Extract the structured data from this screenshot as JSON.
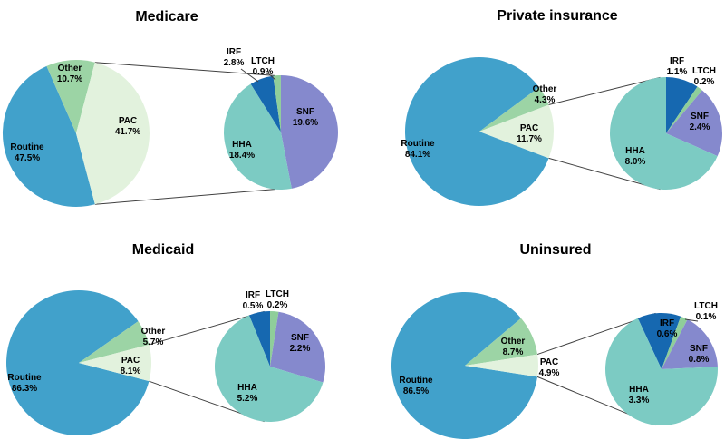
{
  "page": {
    "background": "#ffffff"
  },
  "palette": {
    "routine": "#41A1CB",
    "other": "#9CD4A5",
    "pac": "#E2F2DD",
    "irf": "#1668B0",
    "ltch": "#8FCE9A",
    "snf": "#8589CD",
    "hha": "#7CCBC3",
    "line": "#404040",
    "text": "#000000"
  },
  "chart_data": [
    {
      "type": "pie",
      "variant": "pie-of-pie",
      "title": "Medicare",
      "main": {
        "slices": [
          {
            "label": "Routine",
            "pct": 47.5
          },
          {
            "label": "Other",
            "pct": 10.7
          },
          {
            "label": "PAC",
            "pct": 41.7
          }
        ]
      },
      "detail": {
        "slices": [
          {
            "label": "IRF",
            "pct": 2.8
          },
          {
            "label": "LTCH",
            "pct": 0.9
          },
          {
            "label": "SNF",
            "pct": 19.6
          },
          {
            "label": "HHA",
            "pct": 18.4
          }
        ]
      },
      "layout_hints": {
        "routine_start_deg": 165.1,
        "irf_start_deg": -32,
        "legend": "none",
        "labels": "inside-and-outside"
      }
    },
    {
      "type": "pie",
      "variant": "pie-of-pie",
      "title": "Private insurance",
      "main": {
        "slices": [
          {
            "label": "Routine",
            "pct": 84.1
          },
          {
            "label": "Other",
            "pct": 4.3
          },
          {
            "label": "PAC",
            "pct": 11.7
          }
        ]
      },
      "detail": {
        "slices": [
          {
            "label": "IRF",
            "pct": 1.1
          },
          {
            "label": "LTCH",
            "pct": 0.2
          },
          {
            "label": "SNF",
            "pct": 2.4
          },
          {
            "label": "HHA",
            "pct": 8.0
          }
        ]
      },
      "layout_hints": {
        "routine_start_deg": 111.0,
        "irf_start_deg": 0,
        "legend": "none",
        "labels": "inside-and-outside"
      }
    },
    {
      "type": "pie",
      "variant": "pie-of-pie",
      "title": "Medicaid",
      "main": {
        "slices": [
          {
            "label": "Routine",
            "pct": 86.3
          },
          {
            "label": "Other",
            "pct": 5.7
          },
          {
            "label": "PAC",
            "pct": 8.1
          }
        ]
      },
      "detail": {
        "slices": [
          {
            "label": "IRF",
            "pct": 0.5
          },
          {
            "label": "LTCH",
            "pct": 0.2
          },
          {
            "label": "SNF",
            "pct": 2.2
          },
          {
            "label": "HHA",
            "pct": 5.2
          }
        ]
      },
      "layout_hints": {
        "routine_start_deg": 104.6,
        "irf_start_deg": -22.2,
        "legend": "none",
        "labels": "inside-and-outside"
      }
    },
    {
      "type": "pie",
      "variant": "pie-of-pie",
      "title": "Uninsured",
      "main": {
        "slices": [
          {
            "label": "Routine",
            "pct": 86.5
          },
          {
            "label": "Other",
            "pct": 8.7
          },
          {
            "label": "PAC",
            "pct": 4.9
          }
        ]
      },
      "detail": {
        "slices": [
          {
            "label": "IRF",
            "pct": 0.6
          },
          {
            "label": "LTCH",
            "pct": 0.1
          },
          {
            "label": "SNF",
            "pct": 0.8
          },
          {
            "label": "HHA",
            "pct": 3.3
          }
        ]
      },
      "layout_hints": {
        "routine_start_deg": 98.8,
        "irf_start_deg": -25,
        "legend": "none",
        "labels": "inside-and-outside"
      }
    }
  ]
}
